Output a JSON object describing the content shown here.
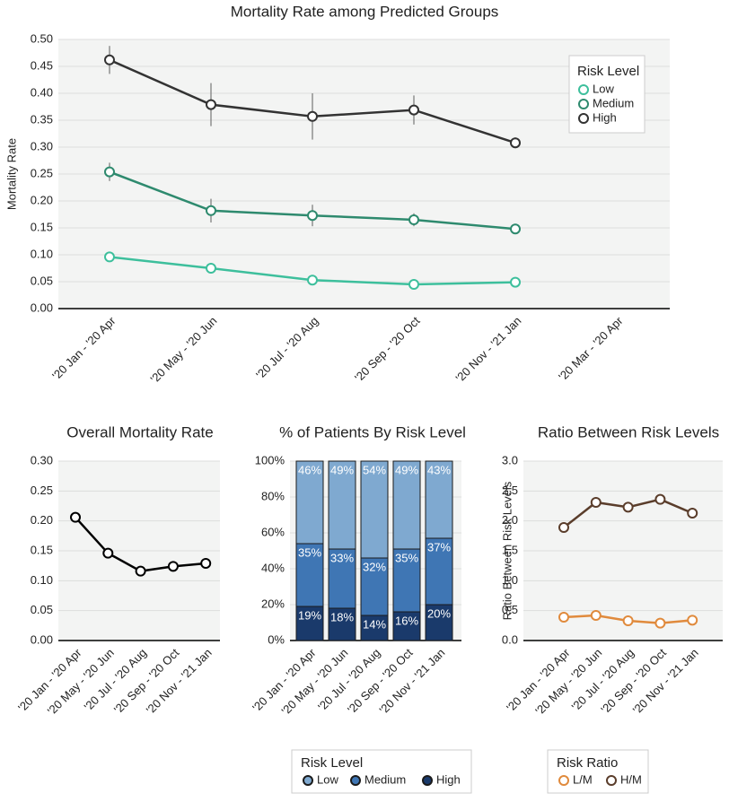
{
  "chart_data": [
    {
      "type": "line",
      "title": "Mortality Rate among Predicted Groups",
      "ylabel": "Mortality Rate",
      "categories": [
        "'20 Jan - '20 Apr",
        "'20 May - '20 Jun",
        "'20 Jul - '20 Aug",
        "'20 Sep - '20 Oct",
        "'20 Nov - '21 Jan",
        "'20 Mar - '20 Apr"
      ],
      "series": [
        {
          "name": "Low",
          "color": "#3dbf9c",
          "values": [
            0.096,
            0.075,
            0.053,
            0.045,
            0.049,
            null
          ],
          "errors": [
            0.005,
            0.01,
            0.005,
            0.004,
            0.004,
            null
          ]
        },
        {
          "name": "Medium",
          "color": "#2e8a6e",
          "values": [
            0.254,
            0.182,
            0.173,
            0.165,
            0.148,
            null
          ],
          "errors": [
            0.017,
            0.022,
            0.02,
            0.012,
            0.006,
            null
          ]
        },
        {
          "name": "High",
          "color": "#333333",
          "values": [
            0.462,
            0.379,
            0.357,
            0.369,
            0.308,
            null
          ],
          "errors": [
            0.026,
            0.04,
            0.043,
            0.027,
            0.01,
            null
          ]
        }
      ],
      "ylim": [
        0,
        0.5
      ],
      "yticks": [
        {
          "value": 0,
          "label": "0.00"
        },
        {
          "value": 0.05,
          "label": "0.05"
        },
        {
          "value": 0.1,
          "label": "0.10"
        },
        {
          "value": 0.15,
          "label": "0.15"
        },
        {
          "value": 0.2,
          "label": "0.20"
        },
        {
          "value": 0.25,
          "label": "0.25"
        },
        {
          "value": 0.3,
          "label": "0.30"
        },
        {
          "value": 0.35,
          "label": "0.35"
        },
        {
          "value": 0.4,
          "label": "0.40"
        },
        {
          "value": 0.45,
          "label": "0.45"
        },
        {
          "value": 0.5,
          "label": "0.50"
        }
      ],
      "grid": true,
      "legend_title": "Risk Level",
      "legend": "upper right"
    },
    {
      "type": "line",
      "title": "Overall Mortality Rate",
      "categories": [
        "'20 Jan - '20 Apr",
        "'20 May - '20 Jun",
        "'20 Jul - '20 Aug",
        "'20 Sep - '20 Oct",
        "'20 Nov - '21 Jan"
      ],
      "series": [
        {
          "color": "#000000",
          "values": [
            0.206,
            0.146,
            0.116,
            0.124,
            0.129
          ]
        }
      ],
      "ylim": [
        0,
        0.3
      ],
      "yticks": [
        {
          "value": 0,
          "label": "0.00"
        },
        {
          "value": 0.05,
          "label": "0.05"
        },
        {
          "value": 0.1,
          "label": "0.10"
        },
        {
          "value": 0.15,
          "label": "0.15"
        },
        {
          "value": 0.2,
          "label": "0.20"
        },
        {
          "value": 0.25,
          "label": "0.25"
        },
        {
          "value": 0.3,
          "label": "0.30"
        }
      ],
      "grid": true
    },
    {
      "type": "bar",
      "stacked": true,
      "title": "% of Patients By Risk Level",
      "categories": [
        "'20 Jan - '20 Apr",
        "'20 May - '20 Jun",
        "'20 Jul - '20 Aug",
        "'20 Sep - '20 Oct",
        "'20 Nov - '21 Jan"
      ],
      "series": [
        {
          "name": "Low",
          "color": "#7fa9d0",
          "values": [
            46,
            49,
            54,
            49,
            43
          ],
          "value_labels": [
            "46%",
            "49%",
            "54%",
            "49%",
            "43%"
          ]
        },
        {
          "name": "Medium",
          "color": "#3f76b4",
          "values": [
            35,
            33,
            32,
            35,
            37
          ],
          "value_labels": [
            "35%",
            "33%",
            "32%",
            "35%",
            "37%"
          ]
        },
        {
          "name": "High",
          "color": "#1a3a6b",
          "values": [
            19,
            18,
            14,
            16,
            20
          ],
          "value_labels": [
            "19%",
            "18%",
            "14%",
            "16%",
            "20%"
          ]
        }
      ],
      "ylim": [
        0,
        100
      ],
      "yticks": [
        {
          "value": 0,
          "label": "0%"
        },
        {
          "value": 20,
          "label": "20%"
        },
        {
          "value": 40,
          "label": "40%"
        },
        {
          "value": 60,
          "label": "60%"
        },
        {
          "value": 80,
          "label": "80%"
        },
        {
          "value": 100,
          "label": "100%"
        }
      ],
      "grid": true,
      "legend_title": "Risk Level",
      "legend": "bottom"
    },
    {
      "type": "line",
      "title": "Ratio Between Risk Levels",
      "ylabel": "Ratio Between Risk Levels",
      "categories": [
        "'20 Jan - '20 Apr",
        "'20 May - '20 Jun",
        "'20 Jul - '20 Aug",
        "'20 Sep - '20 Oct",
        "'20 Nov - '21 Jan"
      ],
      "series": [
        {
          "name": "L/M",
          "color": "#e08a3c",
          "values": [
            0.39,
            0.42,
            0.33,
            0.29,
            0.34
          ]
        },
        {
          "name": "H/M",
          "color": "#5a3d2b",
          "values": [
            1.89,
            2.31,
            2.23,
            2.36,
            2.13
          ]
        }
      ],
      "ylim": [
        0,
        3
      ],
      "yticks": [
        {
          "value": 0,
          "label": "0.0"
        },
        {
          "value": 0.5,
          "label": "0.5"
        },
        {
          "value": 1,
          "label": "1.0"
        },
        {
          "value": 1.5,
          "label": "1.5"
        },
        {
          "value": 2,
          "label": "2.0"
        },
        {
          "value": 2.5,
          "label": "2.5"
        },
        {
          "value": 3,
          "label": "3.0"
        }
      ],
      "grid": true,
      "legend_title": "Risk Ratio",
      "legend": "bottom"
    }
  ]
}
